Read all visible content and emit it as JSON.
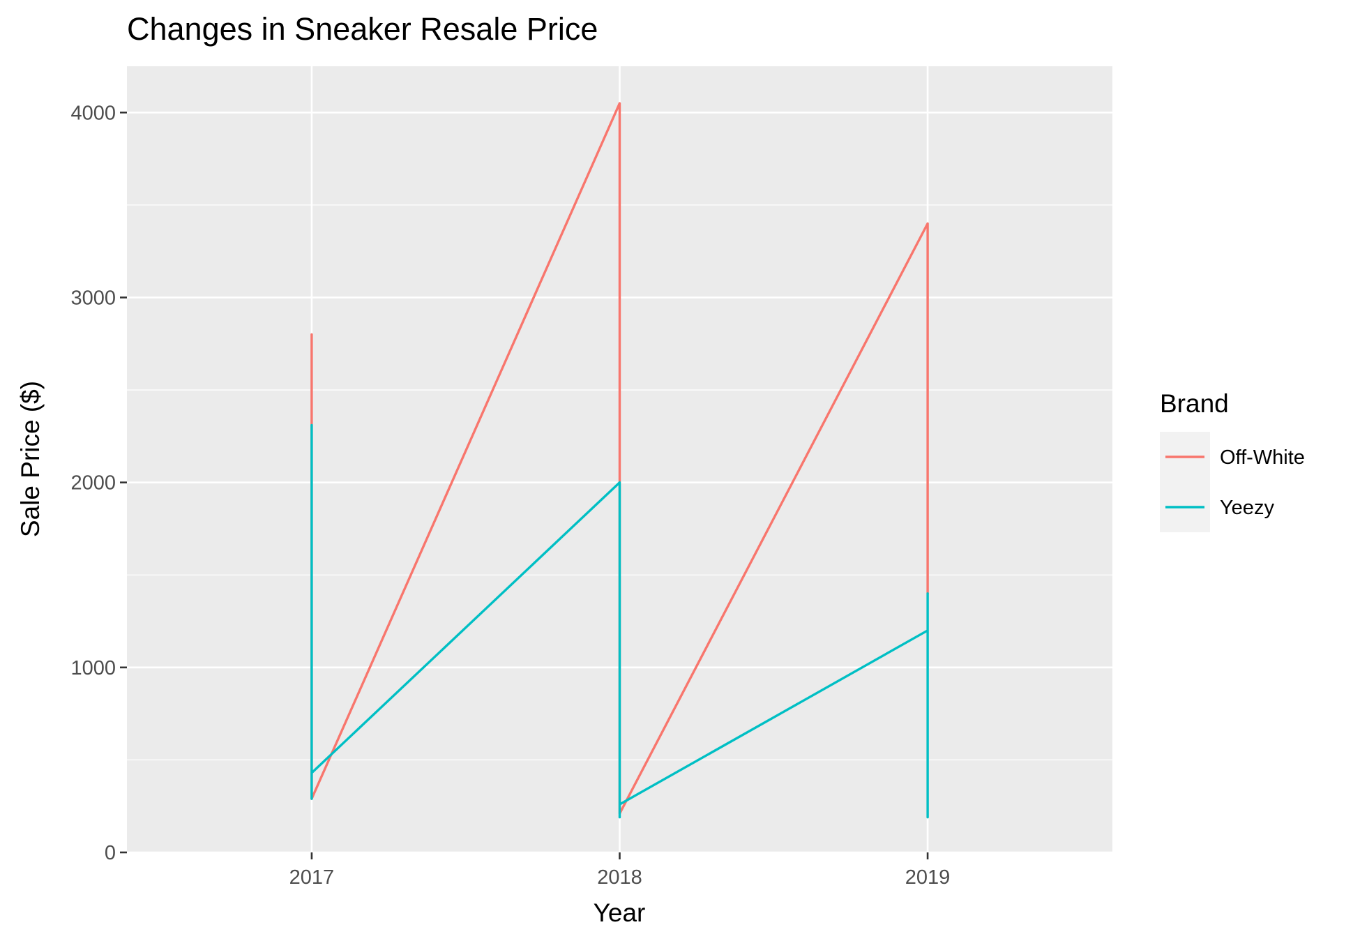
{
  "chart_data": {
    "type": "line",
    "title": "Changes in Sneaker Resale Price",
    "xlabel": "Year",
    "ylabel": "Sale Price ($)",
    "x_ticks": [
      "2017",
      "2018",
      "2019"
    ],
    "xlim": [
      2016.4,
      2019.6
    ],
    "y_ticks": [
      0,
      1000,
      2000,
      3000,
      4000
    ],
    "ylim": [
      0,
      4250
    ],
    "grid": true,
    "legend": {
      "title": "Brand",
      "position": "right"
    },
    "series": [
      {
        "name": "Off-White",
        "color": "#F8766D",
        "points": [
          {
            "x": 2017,
            "y": 2800
          },
          {
            "x": 2017,
            "y": 290
          },
          {
            "x": 2018,
            "y": 4050
          },
          {
            "x": 2018,
            "y": 210
          },
          {
            "x": 2019,
            "y": 3400
          },
          {
            "x": 2019,
            "y": 1400
          }
        ]
      },
      {
        "name": "Yeezy",
        "color": "#00BFC4",
        "points": [
          {
            "x": 2017,
            "y": 2310
          },
          {
            "x": 2017,
            "y": 290
          },
          {
            "x": 2017,
            "y": 430
          },
          {
            "x": 2018,
            "y": 2000
          },
          {
            "x": 2018,
            "y": 190
          },
          {
            "x": 2018,
            "y": 260
          },
          {
            "x": 2019,
            "y": 1200
          },
          {
            "x": 2019,
            "y": 190
          },
          {
            "x": 2019,
            "y": 1400
          }
        ]
      }
    ]
  }
}
